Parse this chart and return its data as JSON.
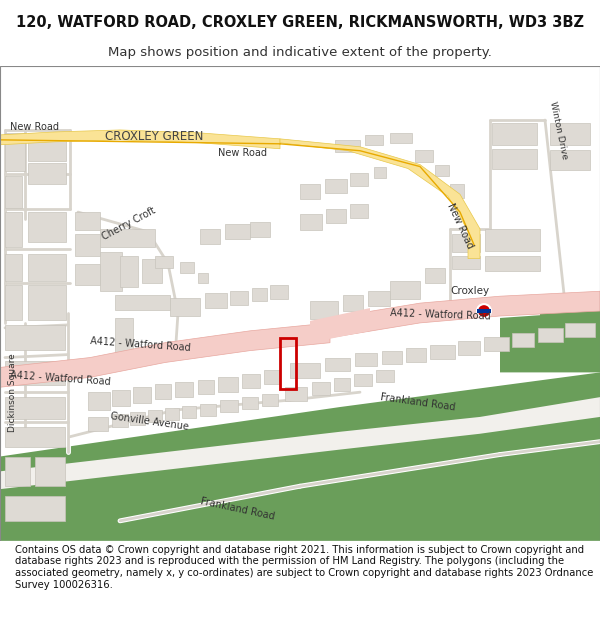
{
  "title1": "120, WATFORD ROAD, CROXLEY GREEN, RICKMANSWORTH, WD3 3BZ",
  "title2": "Map shows position and indicative extent of the property.",
  "footer": "Contains OS data © Crown copyright and database right 2021. This information is subject to Crown copyright and database rights 2023 and is reproduced with the permission of HM Land Registry. The polygons (including the associated geometry, namely x, y co-ordinates) are subject to Crown copyright and database rights 2023 Ordnance Survey 100026316.",
  "map_bg": "#f2f0ec",
  "road_pink_fill": "#f5cdc8",
  "road_pink_edge": "#e8a8a0",
  "road_yellow_fill": "#fae396",
  "road_yellow_edge": "#e8c84a",
  "road_yellow_center": "#e8aa00",
  "green_fill": "#6a9e5a",
  "building_fill": "#dedad4",
  "building_edge": "#c8c4bc",
  "street_color": "#d8d4cc",
  "label_color": "#333333",
  "property_edge": "#cc0000",
  "tube_red": "#cc0000",
  "tube_blue": "#003399",
  "title_fontsize": 10.5,
  "subtitle_fontsize": 9.5,
  "footer_fontsize": 7.2,
  "label_fontsize": 7.5
}
